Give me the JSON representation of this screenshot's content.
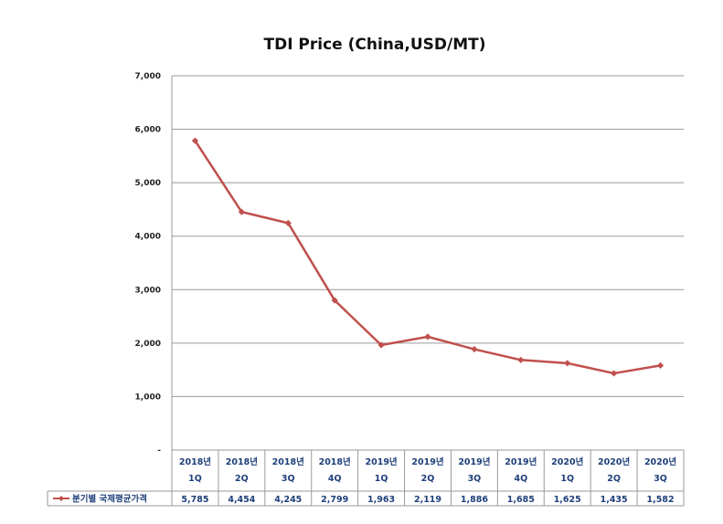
{
  "chart_data": {
    "type": "line",
    "title": "TDI  Price (China,USD/MT)",
    "categories": [
      [
        "2018년",
        "1Q"
      ],
      [
        "2018년",
        "2Q"
      ],
      [
        "2018년",
        "3Q"
      ],
      [
        "2018년",
        "4Q"
      ],
      [
        "2019년",
        "1Q"
      ],
      [
        "2019년",
        "2Q"
      ],
      [
        "2019년",
        "3Q"
      ],
      [
        "2019년",
        "4Q"
      ],
      [
        "2020년",
        "1Q"
      ],
      [
        "2020년",
        "2Q"
      ],
      [
        "2020년",
        "3Q"
      ]
    ],
    "series": [
      {
        "name": "분기별 국제평균가격",
        "values": [
          5785,
          4454,
          4245,
          2799,
          1963,
          2119,
          1886,
          1685,
          1625,
          1435,
          1582
        ],
        "value_labels": [
          "5,785",
          "4,454",
          "4,245",
          "2,799",
          "1,963",
          "2,119",
          "1,886",
          "1,685",
          "1,625",
          "1,435",
          "1,582"
        ],
        "color": "#c0504d"
      }
    ],
    "ylim": [
      0,
      7000
    ],
    "y_ticks": [
      0,
      1000,
      2000,
      3000,
      4000,
      5000,
      6000,
      7000
    ],
    "y_tick_labels": [
      "-",
      "1,000",
      "2,000",
      "3,000",
      "4,000",
      "5,000",
      "6,000",
      "7,000"
    ],
    "grid": true,
    "legend": "data-table-left",
    "data_table": true
  }
}
